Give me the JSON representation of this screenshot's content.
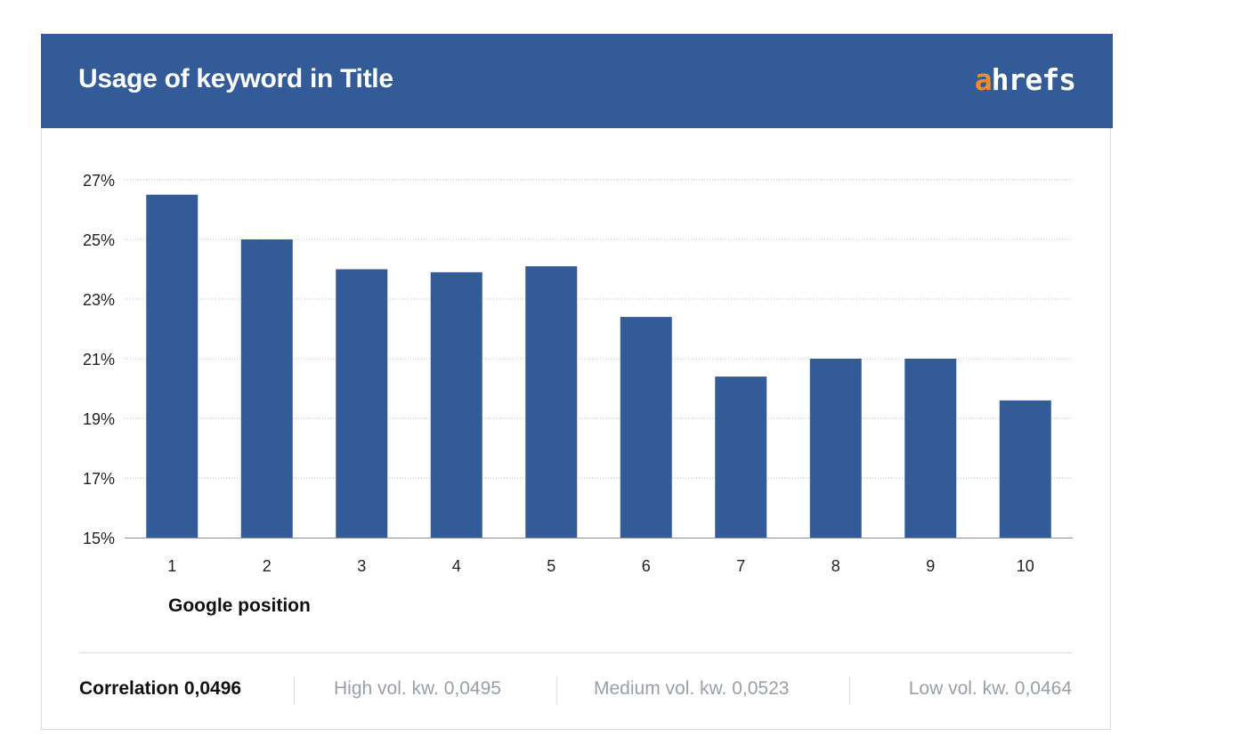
{
  "header": {
    "title": "Usage of keyword in Title",
    "logo_accent": "a",
    "logo_rest": "hrefs",
    "background_color": "#335b97",
    "logo_accent_color": "#f28b30"
  },
  "chart_data": {
    "type": "bar",
    "title": "Usage of keyword in Title",
    "xlabel": "Google position",
    "ylabel": "",
    "categories": [
      "1",
      "2",
      "3",
      "4",
      "5",
      "6",
      "7",
      "8",
      "9",
      "10"
    ],
    "values": [
      26.5,
      25.0,
      24.0,
      23.9,
      24.1,
      22.4,
      20.4,
      21.0,
      21.0,
      19.6
    ],
    "ylim": [
      15,
      27
    ],
    "yticks": [
      15,
      17,
      19,
      21,
      23,
      25,
      27
    ],
    "ytick_labels": [
      "15%",
      "17%",
      "19%",
      "21%",
      "23%",
      "25%",
      "27%"
    ],
    "bar_color": "#335b97",
    "grid": true,
    "grid_style": "dotted",
    "legend": "none"
  },
  "footer": {
    "correlation": "Correlation 0,0496",
    "high": "High vol. kw. 0,0495",
    "medium": "Medium vol. kw. 0,0523",
    "low": "Low vol. kw. 0,0464"
  }
}
